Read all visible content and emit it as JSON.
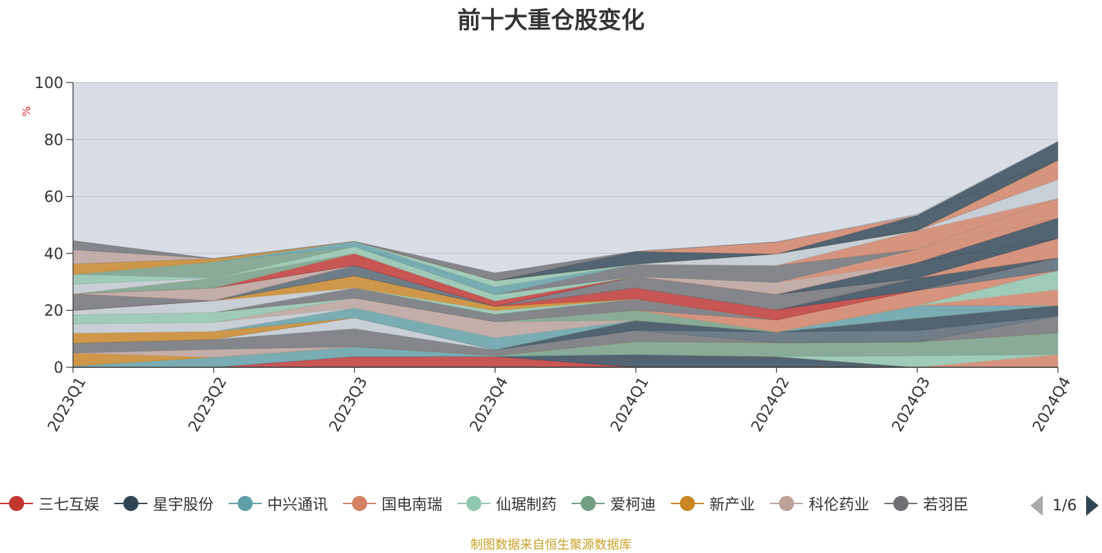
{
  "chart_data": {
    "type": "area",
    "stacked": true,
    "title": "前十大重仓股变化",
    "ylabel": "%",
    "ylim": [
      0,
      100
    ],
    "yticks": [
      0,
      20,
      40,
      60,
      80,
      100
    ],
    "categories": [
      "2023Q1",
      "2023Q2",
      "2023Q3",
      "2023Q4",
      "2024Q1",
      "2024Q2",
      "2024Q3",
      "2024Q4"
    ],
    "grid": true,
    "legend_position": "bottom",
    "series": [
      {
        "values": [
          0,
          0,
          3.8,
          3.8,
          0,
          0,
          0,
          0
        ],
        "color": "#c23531"
      },
      {
        "values": [
          0,
          0,
          0,
          0,
          4.5,
          3.8,
          0,
          0
        ],
        "color": "#2f4554"
      },
      {
        "values": [
          0.5,
          3.5,
          3.4,
          0.3,
          0,
          0,
          0,
          0
        ],
        "color": "#61a0a8"
      },
      {
        "values": [
          0,
          0,
          0,
          0,
          0,
          0,
          0,
          4.5
        ],
        "color": "#d48265"
      },
      {
        "values": [
          0,
          0,
          0,
          0,
          0,
          0,
          4.0,
          0
        ],
        "color": "#91c7ae"
      },
      {
        "values": [
          0,
          0,
          0,
          0,
          4.5,
          4.8,
          4.9,
          7.6
        ],
        "color": "#749f83"
      },
      {
        "values": [
          4.5,
          0,
          0,
          0,
          0,
          0,
          0,
          0
        ],
        "color": "#ca8622"
      },
      {
        "values": [
          0,
          2.8,
          0,
          0,
          0,
          0,
          0,
          0
        ],
        "color": "#bda29a"
      },
      {
        "values": [
          3.5,
          3.5,
          6.4,
          2.0,
          4.0,
          0,
          0,
          5.9
        ],
        "color": "#6e7074"
      },
      {
        "values": [
          0,
          0,
          0,
          0,
          0,
          3.8,
          4.0,
          0
        ],
        "color": "#546570"
      },
      {
        "values": [
          0,
          0,
          3.8,
          0,
          0,
          0,
          0,
          0
        ],
        "color": "#c4ccd3"
      },
      {
        "values": [
          0,
          0,
          0,
          0,
          3.5,
          0,
          4.3,
          3.7
        ],
        "color": "#2f4554"
      },
      {
        "values": [
          3.5,
          2.8,
          0,
          0,
          0,
          0,
          0,
          0
        ],
        "color": "#ca8622"
      },
      {
        "values": [
          0,
          0,
          3.5,
          4.3,
          0,
          0,
          4.5,
          0
        ],
        "color": "#61a0a8"
      },
      {
        "values": [
          0,
          0,
          0,
          0,
          0,
          0,
          0,
          5.6
        ],
        "color": "#d48265"
      },
      {
        "values": [
          3.3,
          3.2,
          0,
          0,
          0,
          0,
          0,
          0
        ],
        "color": "#c4ccd3"
      },
      {
        "values": [
          0,
          0,
          0,
          0,
          0,
          0,
          0,
          6.7
        ],
        "color": "#91c7ae"
      },
      {
        "values": [
          0,
          0,
          3.4,
          5.6,
          0,
          0,
          0,
          0
        ],
        "color": "#bda29a"
      },
      {
        "values": [
          0,
          0,
          0,
          0,
          3.5,
          0,
          0,
          0
        ],
        "color": "#749f83"
      },
      {
        "values": [
          3.1,
          3.5,
          0,
          0,
          0,
          0,
          0,
          0
        ],
        "color": "#91c7ae"
      },
      {
        "values": [
          0,
          0,
          0,
          0,
          0,
          4.2,
          5.3,
          0
        ],
        "color": "#d48265"
      },
      {
        "values": [
          0,
          0,
          3.6,
          2.6,
          4.0,
          0,
          0,
          0
        ],
        "color": "#6e7074"
      },
      {
        "values": [
          0,
          0,
          0,
          0,
          0,
          0,
          0,
          4.5
        ],
        "color": "#546570"
      },
      {
        "values": [
          0,
          0,
          0,
          1.3,
          0,
          0,
          0,
          0
        ],
        "color": "#91c7ae"
      },
      {
        "values": [
          1.6,
          4.1,
          0,
          0,
          0,
          0,
          0,
          0
        ],
        "color": "#c4ccd3"
      },
      {
        "values": [
          0,
          0,
          4.3,
          1.5,
          0,
          0,
          0,
          0
        ],
        "color": "#ca8622"
      },
      {
        "values": [
          0,
          0,
          0,
          0,
          3.9,
          3.6,
          0,
          0
        ],
        "color": "#c23531"
      },
      {
        "values": [
          0,
          0,
          0,
          0,
          0,
          0,
          4.3,
          0
        ],
        "color": "#2f4554"
      },
      {
        "values": [
          5.8,
          0,
          0,
          0,
          0,
          0,
          0,
          0
        ],
        "color": "#6e7074"
      },
      {
        "values": [
          0,
          0,
          3.6,
          0,
          0,
          0,
          0,
          0
        ],
        "color": "#546570"
      },
      {
        "values": [
          0,
          0,
          0,
          0,
          0,
          0,
          0,
          6.8
        ],
        "color": "#d48265"
      },
      {
        "values": [
          0,
          0,
          0,
          0,
          4.0,
          5.4,
          0,
          0
        ],
        "color": "#6e7074"
      },
      {
        "values": [
          0,
          0,
          0,
          0,
          0,
          0,
          5.5,
          0
        ],
        "color": "#2f4554"
      },
      {
        "values": [
          0,
          4.4,
          0,
          0,
          0,
          0,
          0,
          0
        ],
        "color": "#bda29a"
      },
      {
        "values": [
          0,
          0,
          0,
          0,
          0,
          0,
          0,
          7.2
        ],
        "color": "#2f4554"
      },
      {
        "values": [
          0,
          0,
          4.2,
          1.9,
          0,
          0,
          0,
          0
        ],
        "color": "#c23531"
      },
      {
        "values": [
          0,
          0,
          0,
          0,
          0,
          4.2,
          0,
          0
        ],
        "color": "#bda29a"
      },
      {
        "values": [
          0,
          0,
          0,
          0,
          0,
          0,
          4.7,
          0
        ],
        "color": "#d48265"
      },
      {
        "values": [
          0,
          3.6,
          0,
          0,
          0,
          0,
          0,
          0
        ],
        "color": "#749f83"
      },
      {
        "values": [
          0,
          0,
          0,
          2.2,
          0,
          0,
          0,
          0
        ],
        "color": "#91c7ae"
      },
      {
        "values": [
          0,
          0,
          0,
          0,
          0,
          0,
          0,
          6.8
        ],
        "color": "#d48265"
      },
      {
        "values": [
          3.4,
          0,
          0,
          0,
          0,
          0,
          0,
          0
        ],
        "color": "#c4ccd3"
      },
      {
        "values": [
          0,
          0,
          2.4,
          0,
          0,
          0,
          0,
          0
        ],
        "color": "#91c7ae"
      },
      {
        "values": [
          0,
          0,
          0,
          0,
          4.3,
          6.0,
          0,
          0
        ],
        "color": "#6e7074"
      },
      {
        "values": [
          0,
          0,
          0,
          0,
          0,
          0,
          6.5,
          0
        ],
        "color": "#d48265"
      },
      {
        "values": [
          0,
          0,
          0,
          2.8,
          0,
          0,
          0,
          0
        ],
        "color": "#61a0a8"
      },
      {
        "values": [
          0,
          0,
          0,
          0,
          0,
          0,
          0,
          6.7
        ],
        "color": "#c4ccd3"
      },
      {
        "values": [
          3.4,
          0,
          0,
          0,
          0,
          0,
          0,
          0
        ],
        "color": "#91c7ae"
      },
      {
        "values": [
          0,
          5.7,
          0,
          0,
          0,
          0,
          0,
          0
        ],
        "color": "#749f83"
      },
      {
        "values": [
          0,
          0,
          1.8,
          0,
          0,
          0,
          0,
          0
        ],
        "color": "#61a0a8"
      },
      {
        "values": [
          0,
          0,
          0,
          0,
          0,
          0,
          0,
          6.7
        ],
        "color": "#d48265"
      },
      {
        "values": [
          0,
          0,
          0,
          0,
          0,
          4.0,
          0,
          0
        ],
        "color": "#c4ccd3"
      },
      {
        "values": [
          0,
          0,
          0,
          2.1,
          0,
          0,
          0,
          0
        ],
        "color": "#91c7ae"
      },
      {
        "values": [
          3.7,
          1.1,
          0,
          0,
          0,
          0,
          0,
          0
        ],
        "color": "#ca8622"
      },
      {
        "values": [
          0,
          0,
          0,
          0,
          4.5,
          0,
          5.4,
          0
        ],
        "color": "#2f4554"
      },
      {
        "values": [
          0,
          0,
          0,
          0,
          0,
          4.2,
          0,
          0
        ],
        "color": "#d48265"
      },
      {
        "values": [
          0,
          0,
          0,
          2.7,
          0,
          0,
          0,
          0
        ],
        "color": "#6e7074"
      },
      {
        "values": [
          5.0,
          0,
          0,
          0,
          0,
          0,
          0,
          0
        ],
        "color": "#bda29a"
      },
      {
        "values": [
          0,
          0,
          0,
          0,
          0,
          0,
          0,
          6.6
        ],
        "color": "#2f4554"
      },
      {
        "values": [
          0,
          0,
          0,
          0,
          0,
          0,
          0.3,
          0
        ],
        "color": "#c4ccd3"
      },
      {
        "values": [
          3.2,
          0,
          0,
          0,
          0,
          0,
          0,
          0
        ],
        "color": "#6e7074"
      }
    ]
  },
  "legend": {
    "items": [
      {
        "label": "三七互娱",
        "color": "#c23531"
      },
      {
        "label": "星宇股份",
        "color": "#2f4554"
      },
      {
        "label": "中兴通讯",
        "color": "#61a0a8"
      },
      {
        "label": "国电南瑞",
        "color": "#d48265"
      },
      {
        "label": "仙琚制药",
        "color": "#91c7ae"
      },
      {
        "label": "爱柯迪",
        "color": "#749f83"
      },
      {
        "label": "新产业",
        "color": "#ca8622"
      },
      {
        "label": "科伦药业",
        "color": "#bda29a"
      },
      {
        "label": "若羽臣",
        "color": "#6e7074"
      }
    ],
    "page": "1/6"
  },
  "footer": "制图数据来自恒生聚源数据库"
}
